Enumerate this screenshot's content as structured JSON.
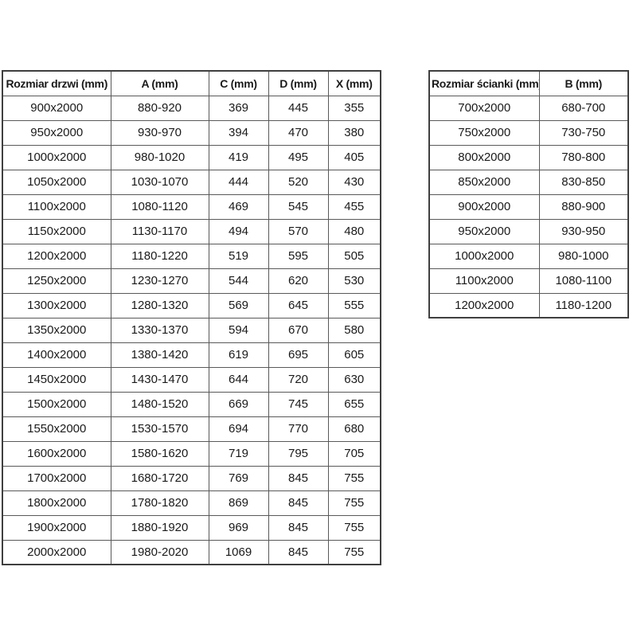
{
  "page": {
    "background_color": "#ffffff",
    "text_color": "#1a1a1a",
    "border_color": "#595959"
  },
  "doors_table": {
    "headers": [
      "Rozmiar drzwi (mm)",
      "A (mm)",
      "C (mm)",
      "D (mm)",
      "X (mm)"
    ],
    "rows": [
      [
        "900x2000",
        "880-920",
        "369",
        "445",
        "355"
      ],
      [
        "950x2000",
        "930-970",
        "394",
        "470",
        "380"
      ],
      [
        "1000x2000",
        "980-1020",
        "419",
        "495",
        "405"
      ],
      [
        "1050x2000",
        "1030-1070",
        "444",
        "520",
        "430"
      ],
      [
        "1100x2000",
        "1080-1120",
        "469",
        "545",
        "455"
      ],
      [
        "1150x2000",
        "1130-1170",
        "494",
        "570",
        "480"
      ],
      [
        "1200x2000",
        "1180-1220",
        "519",
        "595",
        "505"
      ],
      [
        "1250x2000",
        "1230-1270",
        "544",
        "620",
        "530"
      ],
      [
        "1300x2000",
        "1280-1320",
        "569",
        "645",
        "555"
      ],
      [
        "1350x2000",
        "1330-1370",
        "594",
        "670",
        "580"
      ],
      [
        "1400x2000",
        "1380-1420",
        "619",
        "695",
        "605"
      ],
      [
        "1450x2000",
        "1430-1470",
        "644",
        "720",
        "630"
      ],
      [
        "1500x2000",
        "1480-1520",
        "669",
        "745",
        "655"
      ],
      [
        "1550x2000",
        "1530-1570",
        "694",
        "770",
        "680"
      ],
      [
        "1600x2000",
        "1580-1620",
        "719",
        "795",
        "705"
      ],
      [
        "1700x2000",
        "1680-1720",
        "769",
        "845",
        "755"
      ],
      [
        "1800x2000",
        "1780-1820",
        "869",
        "845",
        "755"
      ],
      [
        "1900x2000",
        "1880-1920",
        "969",
        "845",
        "755"
      ],
      [
        "2000x2000",
        "1980-2020",
        "1069",
        "845",
        "755"
      ]
    ]
  },
  "walls_table": {
    "headers": [
      "Rozmiar ścianki (mm)",
      "B (mm)"
    ],
    "rows": [
      [
        "700x2000",
        "680-700"
      ],
      [
        "750x2000",
        "730-750"
      ],
      [
        "800x2000",
        "780-800"
      ],
      [
        "850x2000",
        "830-850"
      ],
      [
        "900x2000",
        "880-900"
      ],
      [
        "950x2000",
        "930-950"
      ],
      [
        "1000x2000",
        "980-1000"
      ],
      [
        "1100x2000",
        "1080-1100"
      ],
      [
        "1200x2000",
        "1180-1200"
      ]
    ]
  }
}
